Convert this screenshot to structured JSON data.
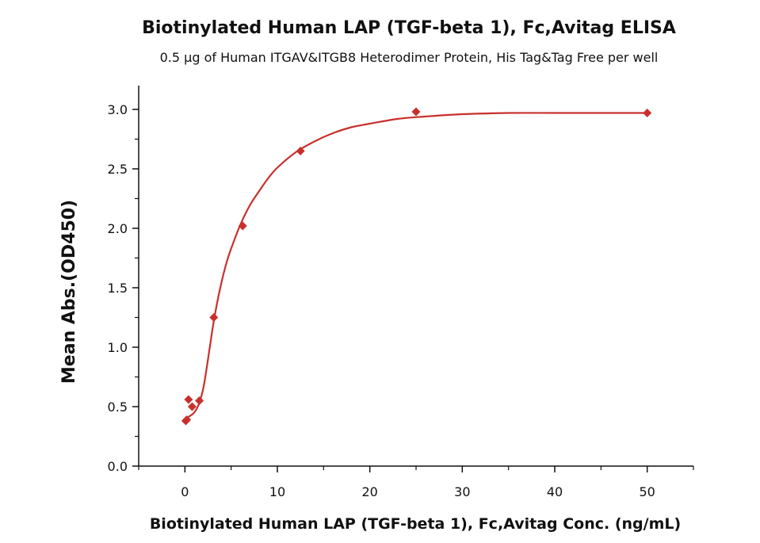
{
  "colors": {
    "series": "#c8302c",
    "axis": "#111111"
  },
  "chart_data": {
    "type": "scatter",
    "title": "Biotinylated Human LAP (TGF-beta 1), Fc,Avitag ELISA",
    "subtitle": "0.5 µg of Human ITGAV&ITGB8 Heterodimer Protein, His Tag&Tag Free per well",
    "xlabel": "Biotinylated Human LAP (TGF-beta 1), Fc,Avitag Conc. (ng/mL)",
    "ylabel": "Mean Abs.(OD450)",
    "xlim": [
      -5,
      55
    ],
    "ylim": [
      0,
      3.2
    ],
    "xticks": [
      0,
      10,
      20,
      30,
      40,
      50
    ],
    "yticks": [
      0.0,
      0.5,
      1.0,
      1.5,
      2.0,
      2.5,
      3.0
    ],
    "xtick_labels": [
      "0",
      "10",
      "20",
      "30",
      "40",
      "50"
    ],
    "ytick_labels": [
      "0.0",
      "0.5",
      "1.0",
      "1.5",
      "2.0",
      "2.5",
      "3.0"
    ],
    "series": [
      {
        "name": "OD450",
        "marker": "diamond",
        "x": [
          0.098,
          0.195,
          0.391,
          0.781,
          1.563,
          3.125,
          6.25,
          12.5,
          25,
          50
        ],
        "y": [
          0.38,
          0.39,
          0.56,
          0.5,
          0.55,
          1.25,
          2.02,
          2.65,
          2.98,
          2.97
        ]
      }
    ],
    "fit_curve": {
      "type": "4PL",
      "x": [
        0,
        0.5,
        1,
        1.5,
        2,
        2.5,
        3,
        3.5,
        4,
        4.5,
        5,
        6,
        7,
        8,
        9,
        10,
        12,
        14,
        16,
        18,
        20,
        23,
        26,
        30,
        35,
        40,
        45,
        50
      ],
      "y": [
        0.4,
        0.42,
        0.45,
        0.52,
        0.66,
        0.9,
        1.16,
        1.38,
        1.56,
        1.71,
        1.83,
        2.03,
        2.19,
        2.31,
        2.42,
        2.51,
        2.64,
        2.73,
        2.8,
        2.85,
        2.88,
        2.92,
        2.94,
        2.96,
        2.97,
        2.97,
        2.97,
        2.97
      ]
    }
  }
}
